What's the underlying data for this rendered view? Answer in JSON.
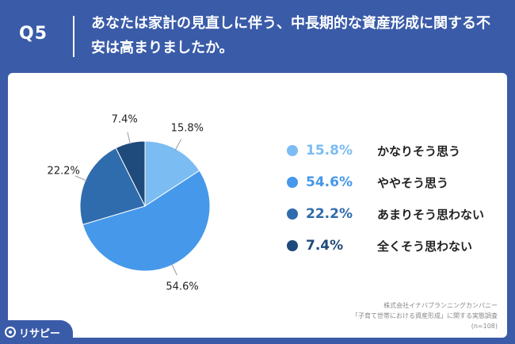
{
  "header": {
    "q_label": "Q5",
    "question": "あなたは家計の見直しに伴う、中長期的な資産形成に関する不安は高まりましたか。"
  },
  "chart_data": {
    "type": "pie",
    "start_angle_deg": 0,
    "direction": "clockwise",
    "slices": [
      {
        "label": "かなりそう思う",
        "value": 15.8,
        "display": "15.8%",
        "color": "#7bbcf3"
      },
      {
        "label": "ややそう思う",
        "value": 54.6,
        "display": "54.6%",
        "color": "#4698ea"
      },
      {
        "label": "あまりそう思わない",
        "value": 22.2,
        "display": "22.2%",
        "color": "#2f6cad"
      },
      {
        "label": "全くそう思わない",
        "value": 7.4,
        "display": "7.4%",
        "color": "#1f4a7c"
      }
    ],
    "legend_position": "right"
  },
  "source": {
    "line1": "株式会社イナバプランニングカンパニー",
    "line2": "「子育て世帯における資産形成」に関する実態調査",
    "line3": "(n=108)"
  },
  "logo": {
    "text": "リサピー"
  }
}
